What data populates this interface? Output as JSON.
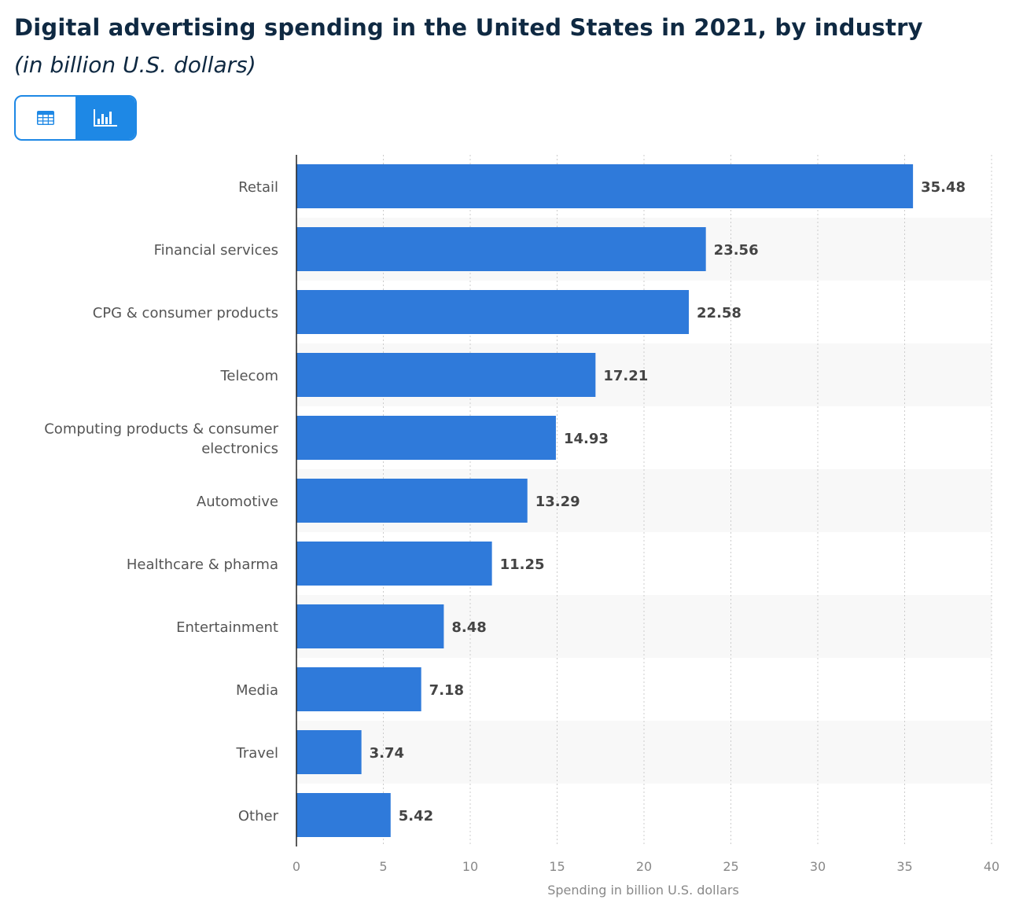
{
  "header": {
    "title": "Digital advertising spending in the United States in 2021, by industry",
    "subtitle": "(in billion U.S. dollars)"
  },
  "view_toggle": {
    "options": [
      {
        "icon": "table-icon",
        "active": false
      },
      {
        "icon": "bar-chart-icon",
        "active": true
      }
    ],
    "accent": "#1e88e5"
  },
  "chart_data": {
    "type": "bar",
    "orientation": "horizontal",
    "categories": [
      "Retail",
      "Financial services",
      "CPG & consumer products",
      "Telecom",
      "Computing products & consumer electronics",
      "Automotive",
      "Healthcare & pharma",
      "Entertainment",
      "Media",
      "Travel",
      "Other"
    ],
    "category_lines": [
      [
        "Retail"
      ],
      [
        "Financial services"
      ],
      [
        "CPG & consumer products"
      ],
      [
        "Telecom"
      ],
      [
        "Computing products & consumer",
        "electronics"
      ],
      [
        "Automotive"
      ],
      [
        "Healthcare & pharma"
      ],
      [
        "Entertainment"
      ],
      [
        "Media"
      ],
      [
        "Travel"
      ],
      [
        "Other"
      ]
    ],
    "values": [
      35.48,
      23.56,
      22.58,
      17.21,
      14.93,
      13.29,
      11.25,
      8.48,
      7.18,
      3.74,
      5.42
    ],
    "value_labels": [
      "35.48",
      "23.56",
      "22.58",
      "17.21",
      "14.93",
      "13.29",
      "11.25",
      "8.48",
      "7.18",
      "3.74",
      "5.42"
    ],
    "xlabel": "Spending in billion U.S. dollars",
    "ylabel": "",
    "xlim": [
      0,
      40
    ],
    "ticks": [
      "0",
      "5",
      "10",
      "15",
      "20",
      "25",
      "30",
      "35",
      "40"
    ],
    "tick_values": [
      0,
      5,
      10,
      15,
      20,
      25,
      30,
      35,
      40
    ],
    "grid": "vertical dotted",
    "bar_color": "#2f7ada",
    "band_color": "#f8f8f8"
  }
}
